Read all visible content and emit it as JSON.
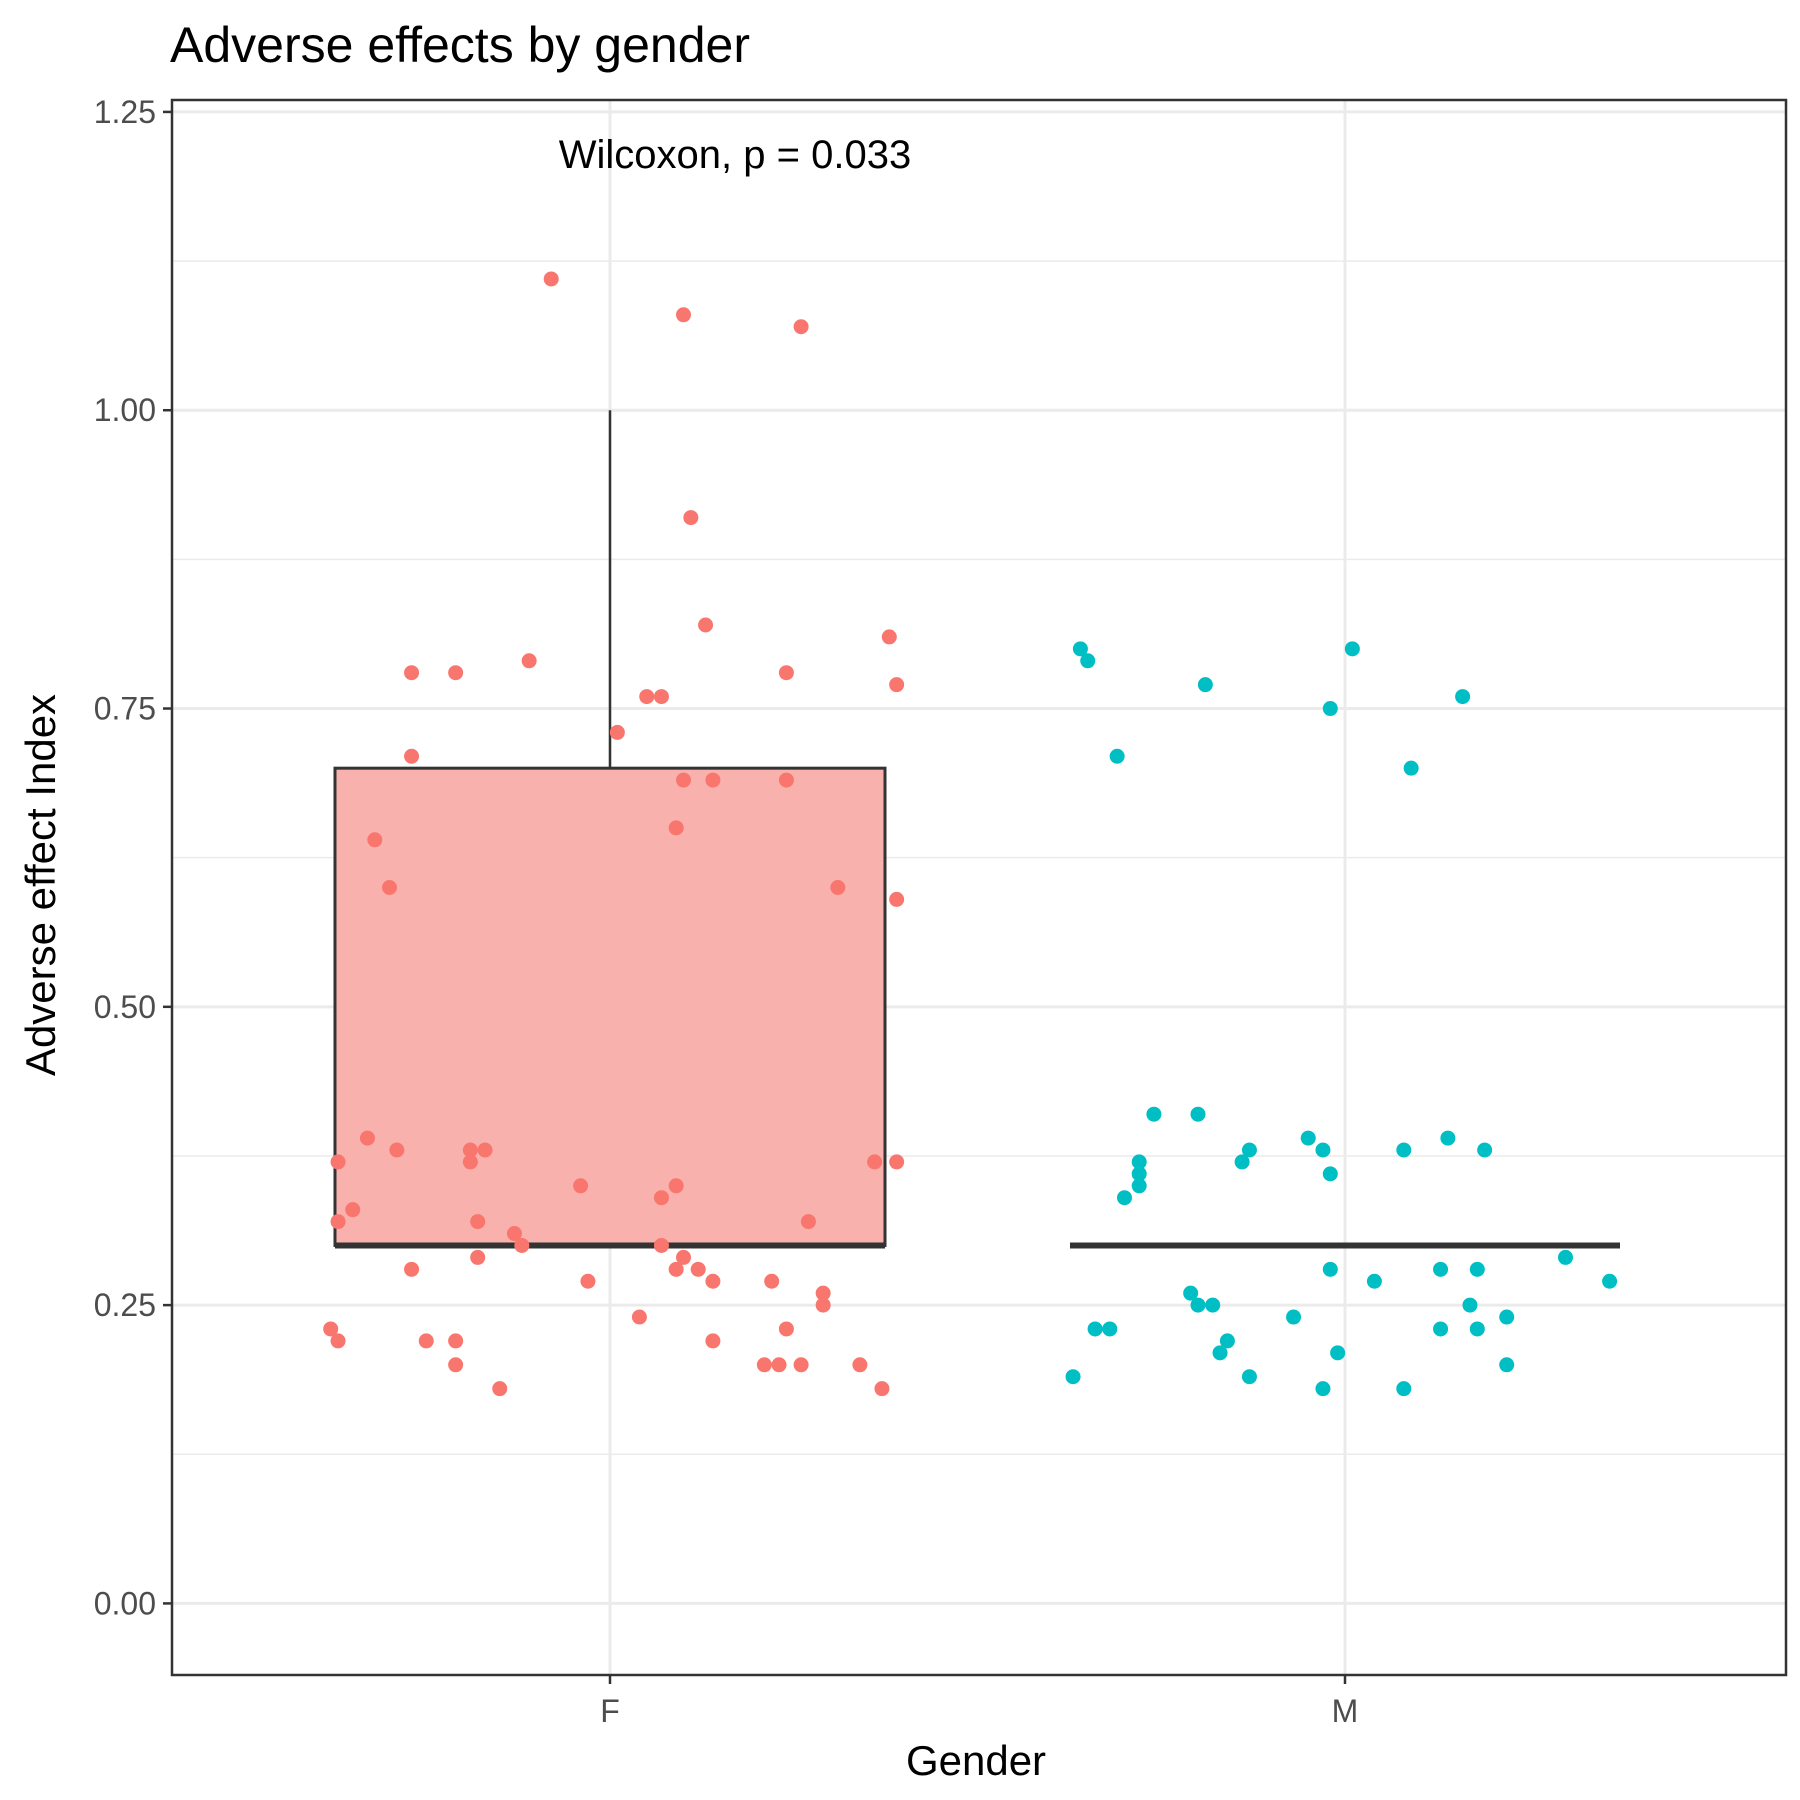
{
  "chart_data": {
    "type": "box",
    "title": "Adverse effects by gender",
    "xlabel": "Gender",
    "ylabel": "Adverse effect Index",
    "categories": [
      "F",
      "M"
    ],
    "ylim": [
      -0.06,
      1.26
    ],
    "yticks": [
      0.0,
      0.25,
      0.5,
      0.75,
      1.0,
      1.25
    ],
    "ytick_labels": [
      "0.00",
      "0.25",
      "0.50",
      "0.75",
      "1.00",
      "1.25"
    ],
    "grid": true,
    "legend": "none",
    "annotation": "Wilcoxon, p = 0.033",
    "colors": {
      "F": "#F8766D",
      "M": "#00BFC4",
      "box_fill": "#F9B1AD",
      "box_line": "#333333",
      "grid": "#ebebeb"
    },
    "boxes": [
      {
        "category": "F",
        "min": 0.3,
        "q1": 0.3,
        "median": 0.3,
        "q3": 0.7,
        "max": 1.0
      },
      {
        "category": "M",
        "min": 0.3,
        "q1": 0.3,
        "median": 0.3,
        "q3": 0.3,
        "max": 0.3
      }
    ],
    "series": [
      {
        "category": "F",
        "points": [
          [
            -0.08,
            1.11
          ],
          [
            0.1,
            1.08
          ],
          [
            0.26,
            1.07
          ],
          [
            0.11,
            0.91
          ],
          [
            0.13,
            0.82
          ],
          [
            0.38,
            0.81
          ],
          [
            -0.11,
            0.79
          ],
          [
            -0.27,
            0.78
          ],
          [
            -0.21,
            0.78
          ],
          [
            0.24,
            0.78
          ],
          [
            0.39,
            0.77
          ],
          [
            0.05,
            0.76
          ],
          [
            0.07,
            0.76
          ],
          [
            0.01,
            0.73
          ],
          [
            -0.27,
            0.71
          ],
          [
            0.1,
            0.69
          ],
          [
            0.14,
            0.69
          ],
          [
            0.24,
            0.69
          ],
          [
            0.09,
            0.65
          ],
          [
            -0.32,
            0.64
          ],
          [
            -0.3,
            0.6
          ],
          [
            0.31,
            0.6
          ],
          [
            0.39,
            0.59
          ],
          [
            -0.33,
            0.39
          ],
          [
            -0.29,
            0.38
          ],
          [
            -0.19,
            0.38
          ],
          [
            -0.17,
            0.38
          ],
          [
            -0.37,
            0.37
          ],
          [
            -0.19,
            0.37
          ],
          [
            0.36,
            0.37
          ],
          [
            0.39,
            0.37
          ],
          [
            -0.04,
            0.35
          ],
          [
            0.07,
            0.34
          ],
          [
            0.09,
            0.35
          ],
          [
            -0.35,
            0.33
          ],
          [
            -0.37,
            0.32
          ],
          [
            -0.18,
            0.32
          ],
          [
            0.27,
            0.32
          ],
          [
            -0.13,
            0.31
          ],
          [
            -0.12,
            0.3
          ],
          [
            0.07,
            0.3
          ],
          [
            0.1,
            0.29
          ],
          [
            -0.18,
            0.29
          ],
          [
            0.09,
            0.28
          ],
          [
            0.12,
            0.28
          ],
          [
            -0.27,
            0.28
          ],
          [
            -0.03,
            0.27
          ],
          [
            0.14,
            0.27
          ],
          [
            0.22,
            0.27
          ],
          [
            0.29,
            0.26
          ],
          [
            0.29,
            0.25
          ],
          [
            0.04,
            0.24
          ],
          [
            -0.38,
            0.23
          ],
          [
            -0.37,
            0.22
          ],
          [
            0.24,
            0.23
          ],
          [
            -0.25,
            0.22
          ],
          [
            -0.21,
            0.22
          ],
          [
            0.14,
            0.22
          ],
          [
            -0.21,
            0.2
          ],
          [
            0.34,
            0.2
          ],
          [
            0.21,
            0.2
          ],
          [
            0.23,
            0.2
          ],
          [
            0.26,
            0.2
          ],
          [
            -0.15,
            0.18
          ],
          [
            0.37,
            0.18
          ]
        ]
      },
      {
        "category": "M",
        "points": [
          [
            -0.36,
            0.8
          ],
          [
            -0.35,
            0.79
          ],
          [
            0.01,
            0.8
          ],
          [
            -0.19,
            0.77
          ],
          [
            -0.02,
            0.75
          ],
          [
            0.16,
            0.76
          ],
          [
            -0.31,
            0.71
          ],
          [
            0.09,
            0.7
          ],
          [
            -0.26,
            0.41
          ],
          [
            -0.2,
            0.41
          ],
          [
            -0.05,
            0.39
          ],
          [
            0.14,
            0.39
          ],
          [
            -0.03,
            0.38
          ],
          [
            0.19,
            0.38
          ],
          [
            -0.13,
            0.38
          ],
          [
            0.08,
            0.38
          ],
          [
            -0.28,
            0.37
          ],
          [
            -0.14,
            0.37
          ],
          [
            -0.28,
            0.36
          ],
          [
            -0.02,
            0.36
          ],
          [
            -0.28,
            0.35
          ],
          [
            -0.3,
            0.34
          ],
          [
            -0.21,
            0.26
          ],
          [
            -0.2,
            0.25
          ],
          [
            -0.18,
            0.25
          ],
          [
            -0.02,
            0.28
          ],
          [
            0.04,
            0.27
          ],
          [
            0.13,
            0.28
          ],
          [
            0.18,
            0.28
          ],
          [
            0.3,
            0.29
          ],
          [
            0.36,
            0.27
          ],
          [
            0.17,
            0.25
          ],
          [
            0.22,
            0.24
          ],
          [
            -0.07,
            0.24
          ],
          [
            -0.34,
            0.23
          ],
          [
            -0.32,
            0.23
          ],
          [
            0.13,
            0.23
          ],
          [
            0.18,
            0.23
          ],
          [
            -0.16,
            0.22
          ],
          [
            -0.17,
            0.21
          ],
          [
            -0.01,
            0.21
          ],
          [
            -0.13,
            0.19
          ],
          [
            -0.37,
            0.19
          ],
          [
            0.22,
            0.2
          ],
          [
            -0.03,
            0.18
          ],
          [
            0.08,
            0.18
          ]
        ]
      }
    ]
  }
}
